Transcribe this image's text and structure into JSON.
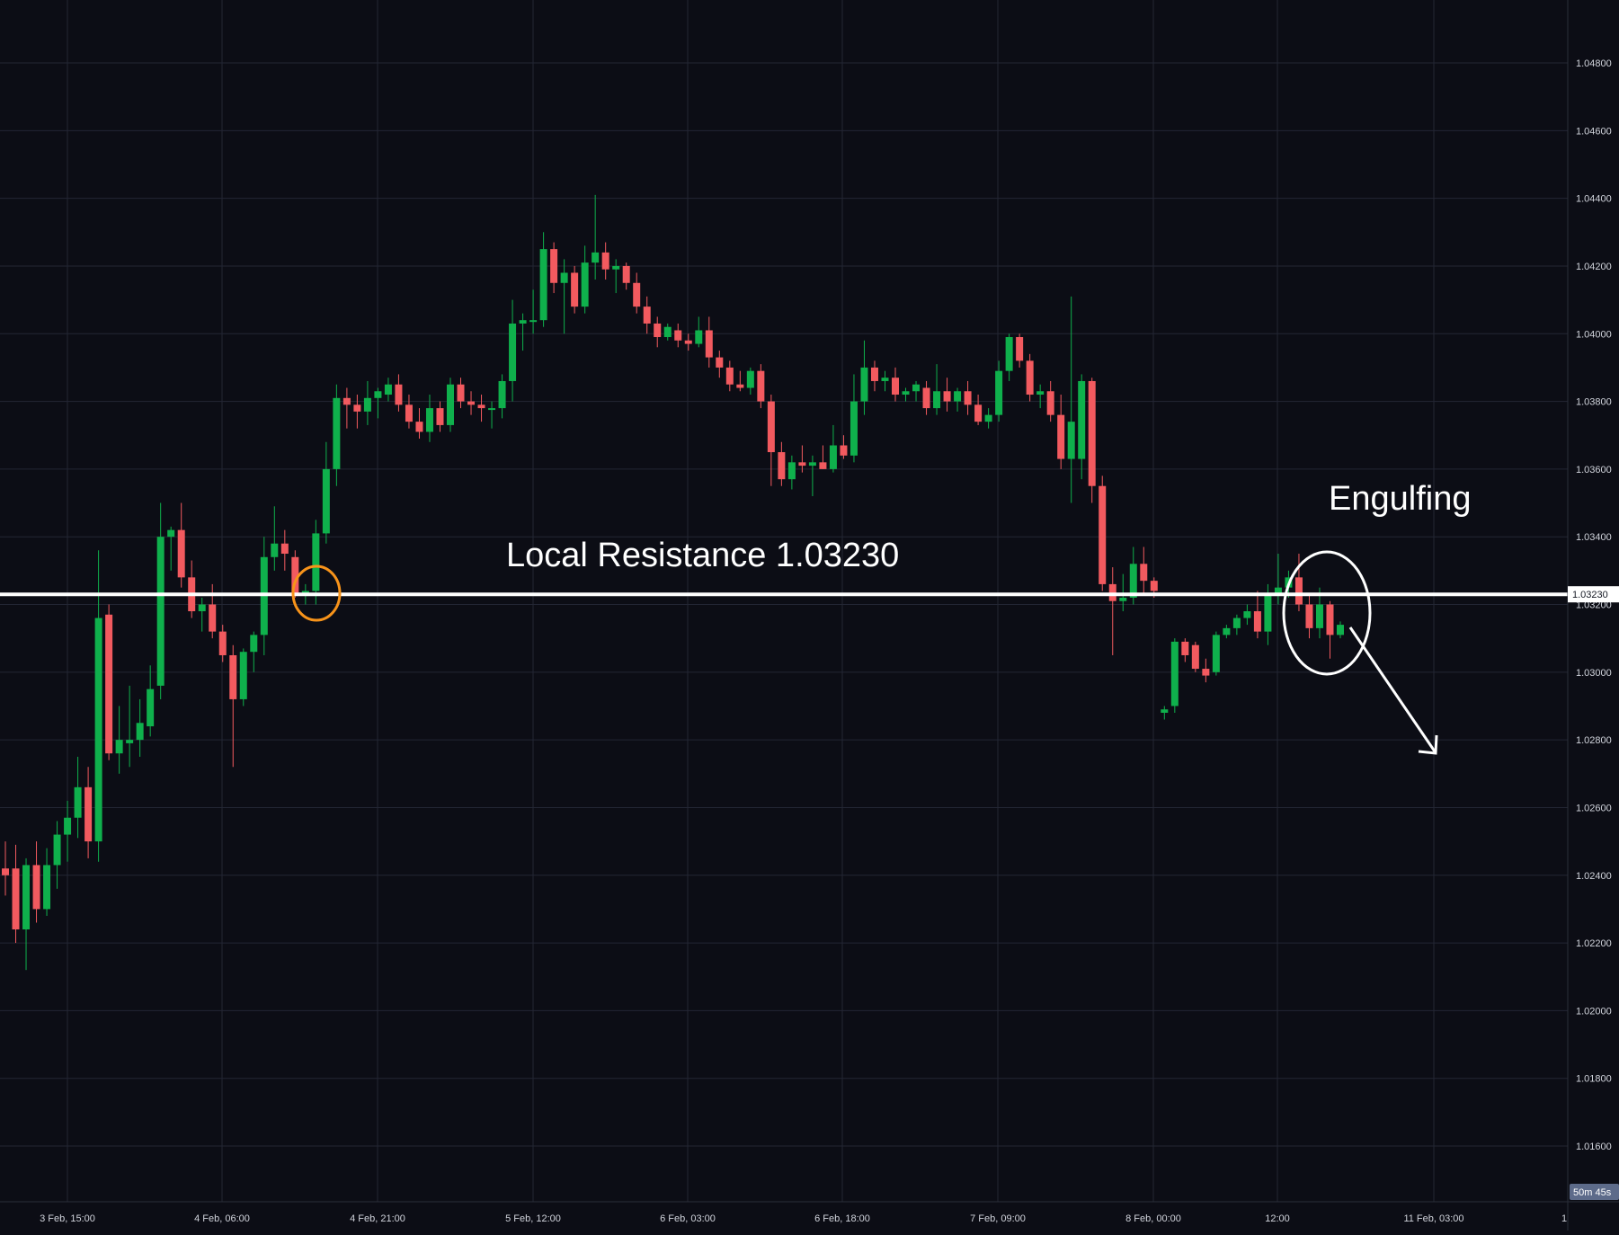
{
  "chart_data": {
    "type": "candlestick",
    "y_axis": {
      "ticks": [
        "1.04800",
        "1.04600",
        "1.04400",
        "1.04200",
        "1.04000",
        "1.03800",
        "1.03600",
        "1.03400",
        "1.03200",
        "1.03000",
        "1.02800",
        "1.02600",
        "1.02400",
        "1.02200",
        "1.02000",
        "1.01800",
        "1.01600"
      ],
      "range": [
        1.0146,
        1.0496
      ]
    },
    "x_axis": {
      "ticks": [
        "3 Feb, 15:00",
        "4 Feb, 06:00",
        "4 Feb, 21:00",
        "5 Feb, 12:00",
        "6 Feb, 03:00",
        "6 Feb, 18:00",
        "7 Feb, 09:00",
        "8 Feb, 00:00",
        "12:00",
        "11 Feb, 03:00",
        "1"
      ]
    },
    "current_price_label": "1.03230",
    "countdown_label": "50m 45s",
    "colors": {
      "bull": "#089981",
      "bull_fill": "#0fb04c",
      "bear": "#f23645",
      "bear_fill": "#f25a5f",
      "background": "#0c0d15",
      "grid": "#232634"
    },
    "resistance_level": 1.0323,
    "annotations": {
      "resistance_label": "Local Resistance 1.03230",
      "pattern_label": "Engulfing"
    },
    "candles": [
      {
        "o": 1.0242,
        "h": 1.025,
        "l": 1.0234,
        "c": 1.024
      },
      {
        "o": 1.0242,
        "h": 1.0249,
        "l": 1.022,
        "c": 1.0224
      },
      {
        "o": 1.0224,
        "h": 1.0245,
        "l": 1.0212,
        "c": 1.0243
      },
      {
        "o": 1.0243,
        "h": 1.025,
        "l": 1.0226,
        "c": 1.023
      },
      {
        "o": 1.023,
        "h": 1.0248,
        "l": 1.0228,
        "c": 1.0243
      },
      {
        "o": 1.0243,
        "h": 1.0256,
        "l": 1.0236,
        "c": 1.0252
      },
      {
        "o": 1.0252,
        "h": 1.0262,
        "l": 1.0244,
        "c": 1.0257
      },
      {
        "o": 1.0257,
        "h": 1.0275,
        "l": 1.0251,
        "c": 1.0266
      },
      {
        "o": 1.0266,
        "h": 1.0272,
        "l": 1.0245,
        "c": 1.025
      },
      {
        "o": 1.025,
        "h": 1.0336,
        "l": 1.0244,
        "c": 1.0316
      },
      {
        "o": 1.0317,
        "h": 1.032,
        "l": 1.0274,
        "c": 1.0276
      },
      {
        "o": 1.0276,
        "h": 1.029,
        "l": 1.027,
        "c": 1.028
      },
      {
        "o": 1.0279,
        "h": 1.0296,
        "l": 1.0272,
        "c": 1.028
      },
      {
        "o": 1.028,
        "h": 1.0292,
        "l": 1.0275,
        "c": 1.0285
      },
      {
        "o": 1.0284,
        "h": 1.0302,
        "l": 1.0281,
        "c": 1.0295
      },
      {
        "o": 1.0296,
        "h": 1.035,
        "l": 1.0292,
        "c": 1.034
      },
      {
        "o": 1.034,
        "h": 1.0343,
        "l": 1.033,
        "c": 1.0342
      },
      {
        "o": 1.0342,
        "h": 1.035,
        "l": 1.0325,
        "c": 1.0328
      },
      {
        "o": 1.0328,
        "h": 1.0333,
        "l": 1.0316,
        "c": 1.0318
      },
      {
        "o": 1.0318,
        "h": 1.0322,
        "l": 1.0312,
        "c": 1.032
      },
      {
        "o": 1.032,
        "h": 1.0326,
        "l": 1.031,
        "c": 1.0312
      },
      {
        "o": 1.0312,
        "h": 1.0314,
        "l": 1.0303,
        "c": 1.0305
      },
      {
        "o": 1.0305,
        "h": 1.0308,
        "l": 1.0272,
        "c": 1.0292
      },
      {
        "o": 1.0292,
        "h": 1.0307,
        "l": 1.029,
        "c": 1.0306
      },
      {
        "o": 1.0306,
        "h": 1.0312,
        "l": 1.03,
        "c": 1.0311
      },
      {
        "o": 1.0311,
        "h": 1.034,
        "l": 1.0305,
        "c": 1.0334
      },
      {
        "o": 1.0334,
        "h": 1.0349,
        "l": 1.033,
        "c": 1.0338
      },
      {
        "o": 1.0338,
        "h": 1.0342,
        "l": 1.033,
        "c": 1.0335
      },
      {
        "o": 1.0334,
        "h": 1.0336,
        "l": 1.0322,
        "c": 1.0323
      },
      {
        "o": 1.0323,
        "h": 1.0326,
        "l": 1.032,
        "c": 1.0324
      },
      {
        "o": 1.0324,
        "h": 1.0345,
        "l": 1.032,
        "c": 1.0341
      },
      {
        "o": 1.0341,
        "h": 1.0368,
        "l": 1.0338,
        "c": 1.036
      },
      {
        "o": 1.036,
        "h": 1.0385,
        "l": 1.0355,
        "c": 1.0381
      },
      {
        "o": 1.0381,
        "h": 1.0384,
        "l": 1.0372,
        "c": 1.0379
      },
      {
        "o": 1.0379,
        "h": 1.0382,
        "l": 1.0372,
        "c": 1.0377
      },
      {
        "o": 1.0377,
        "h": 1.0386,
        "l": 1.0373,
        "c": 1.0381
      },
      {
        "o": 1.0381,
        "h": 1.0384,
        "l": 1.0375,
        "c": 1.0383
      },
      {
        "o": 1.0382,
        "h": 1.0387,
        "l": 1.038,
        "c": 1.0385
      },
      {
        "o": 1.0385,
        "h": 1.0388,
        "l": 1.0377,
        "c": 1.0379
      },
      {
        "o": 1.0379,
        "h": 1.0382,
        "l": 1.0372,
        "c": 1.0374
      },
      {
        "o": 1.0374,
        "h": 1.0378,
        "l": 1.0369,
        "c": 1.0371
      },
      {
        "o": 1.0371,
        "h": 1.0382,
        "l": 1.0368,
        "c": 1.0378
      },
      {
        "o": 1.0378,
        "h": 1.038,
        "l": 1.0371,
        "c": 1.0373
      },
      {
        "o": 1.0373,
        "h": 1.0387,
        "l": 1.0371,
        "c": 1.0385
      },
      {
        "o": 1.0385,
        "h": 1.0387,
        "l": 1.0378,
        "c": 1.038
      },
      {
        "o": 1.038,
        "h": 1.0383,
        "l": 1.0376,
        "c": 1.0379
      },
      {
        "o": 1.0379,
        "h": 1.0382,
        "l": 1.0374,
        "c": 1.0378
      },
      {
        "o": 1.0378,
        "h": 1.038,
        "l": 1.0372,
        "c": 1.0378
      },
      {
        "o": 1.0378,
        "h": 1.0388,
        "l": 1.0375,
        "c": 1.0386
      },
      {
        "o": 1.0386,
        "h": 1.041,
        "l": 1.038,
        "c": 1.0403
      },
      {
        "o": 1.0403,
        "h": 1.0406,
        "l": 1.0395,
        "c": 1.0404
      },
      {
        "o": 1.0404,
        "h": 1.0413,
        "l": 1.04,
        "c": 1.0404
      },
      {
        "o": 1.0404,
        "h": 1.043,
        "l": 1.0402,
        "c": 1.0425
      },
      {
        "o": 1.0425,
        "h": 1.0427,
        "l": 1.0412,
        "c": 1.0415
      },
      {
        "o": 1.0415,
        "h": 1.0422,
        "l": 1.04,
        "c": 1.0418
      },
      {
        "o": 1.0418,
        "h": 1.042,
        "l": 1.0406,
        "c": 1.0408
      },
      {
        "o": 1.0408,
        "h": 1.0426,
        "l": 1.0406,
        "c": 1.0421
      },
      {
        "o": 1.0421,
        "h": 1.0441,
        "l": 1.0416,
        "c": 1.0424
      },
      {
        "o": 1.0424,
        "h": 1.0427,
        "l": 1.0416,
        "c": 1.0419
      },
      {
        "o": 1.0419,
        "h": 1.0422,
        "l": 1.0412,
        "c": 1.042
      },
      {
        "o": 1.042,
        "h": 1.0421,
        "l": 1.0413,
        "c": 1.0415
      },
      {
        "o": 1.0415,
        "h": 1.0418,
        "l": 1.0406,
        "c": 1.0408
      },
      {
        "o": 1.0408,
        "h": 1.0411,
        "l": 1.04,
        "c": 1.0403
      },
      {
        "o": 1.0403,
        "h": 1.0405,
        "l": 1.0396,
        "c": 1.0399
      },
      {
        "o": 1.0399,
        "h": 1.0403,
        "l": 1.0398,
        "c": 1.0402
      },
      {
        "o": 1.0401,
        "h": 1.0403,
        "l": 1.0396,
        "c": 1.0398
      },
      {
        "o": 1.0398,
        "h": 1.04,
        "l": 1.0395,
        "c": 1.0397
      },
      {
        "o": 1.0397,
        "h": 1.0405,
        "l": 1.0396,
        "c": 1.0401
      },
      {
        "o": 1.0401,
        "h": 1.0405,
        "l": 1.039,
        "c": 1.0393
      },
      {
        "o": 1.0393,
        "h": 1.0395,
        "l": 1.0387,
        "c": 1.039
      },
      {
        "o": 1.039,
        "h": 1.0392,
        "l": 1.0383,
        "c": 1.0385
      },
      {
        "o": 1.0385,
        "h": 1.0389,
        "l": 1.0383,
        "c": 1.0384
      },
      {
        "o": 1.0384,
        "h": 1.039,
        "l": 1.0382,
        "c": 1.0389
      },
      {
        "o": 1.0389,
        "h": 1.0391,
        "l": 1.0378,
        "c": 1.038
      },
      {
        "o": 1.038,
        "h": 1.0382,
        "l": 1.0355,
        "c": 1.0365
      },
      {
        "o": 1.0365,
        "h": 1.0368,
        "l": 1.0355,
        "c": 1.0357
      },
      {
        "o": 1.0357,
        "h": 1.0364,
        "l": 1.0354,
        "c": 1.0362
      },
      {
        "o": 1.0362,
        "h": 1.0367,
        "l": 1.0359,
        "c": 1.0361
      },
      {
        "o": 1.0361,
        "h": 1.0364,
        "l": 1.0352,
        "c": 1.0362
      },
      {
        "o": 1.0362,
        "h": 1.0367,
        "l": 1.036,
        "c": 1.036
      },
      {
        "o": 1.036,
        "h": 1.0373,
        "l": 1.0359,
        "c": 1.0367
      },
      {
        "o": 1.0367,
        "h": 1.037,
        "l": 1.0363,
        "c": 1.0364
      },
      {
        "o": 1.0364,
        "h": 1.0388,
        "l": 1.0362,
        "c": 1.038
      },
      {
        "o": 1.038,
        "h": 1.0398,
        "l": 1.0376,
        "c": 1.039
      },
      {
        "o": 1.039,
        "h": 1.0392,
        "l": 1.0383,
        "c": 1.0386
      },
      {
        "o": 1.0386,
        "h": 1.0389,
        "l": 1.0383,
        "c": 1.0387
      },
      {
        "o": 1.0387,
        "h": 1.039,
        "l": 1.038,
        "c": 1.0382
      },
      {
        "o": 1.0382,
        "h": 1.0384,
        "l": 1.038,
        "c": 1.0383
      },
      {
        "o": 1.0383,
        "h": 1.0386,
        "l": 1.038,
        "c": 1.0385
      },
      {
        "o": 1.0384,
        "h": 1.0386,
        "l": 1.0376,
        "c": 1.0378
      },
      {
        "o": 1.0378,
        "h": 1.0391,
        "l": 1.0376,
        "c": 1.0383
      },
      {
        "o": 1.0383,
        "h": 1.0387,
        "l": 1.0377,
        "c": 1.038
      },
      {
        "o": 1.038,
        "h": 1.0384,
        "l": 1.0377,
        "c": 1.0383
      },
      {
        "o": 1.0383,
        "h": 1.0386,
        "l": 1.0376,
        "c": 1.0379
      },
      {
        "o": 1.0379,
        "h": 1.0382,
        "l": 1.0373,
        "c": 1.0374
      },
      {
        "o": 1.0374,
        "h": 1.0378,
        "l": 1.0372,
        "c": 1.0376
      },
      {
        "o": 1.0376,
        "h": 1.0392,
        "l": 1.0374,
        "c": 1.0389
      },
      {
        "o": 1.0389,
        "h": 1.04,
        "l": 1.0386,
        "c": 1.0399
      },
      {
        "o": 1.0399,
        "h": 1.04,
        "l": 1.039,
        "c": 1.0392
      },
      {
        "o": 1.0392,
        "h": 1.0394,
        "l": 1.038,
        "c": 1.0382
      },
      {
        "o": 1.0382,
        "h": 1.0385,
        "l": 1.0378,
        "c": 1.0383
      },
      {
        "o": 1.0383,
        "h": 1.0386,
        "l": 1.0374,
        "c": 1.0376
      },
      {
        "o": 1.0376,
        "h": 1.0382,
        "l": 1.036,
        "c": 1.0363
      },
      {
        "o": 1.0363,
        "h": 1.0411,
        "l": 1.035,
        "c": 1.0374
      },
      {
        "o": 1.0363,
        "h": 1.0388,
        "l": 1.0357,
        "c": 1.0386
      },
      {
        "o": 1.0386,
        "h": 1.0387,
        "l": 1.035,
        "c": 1.0355
      },
      {
        "o": 1.0355,
        "h": 1.0358,
        "l": 1.0324,
        "c": 1.0326
      },
      {
        "o": 1.0326,
        "h": 1.0331,
        "l": 1.0305,
        "c": 1.0321
      },
      {
        "o": 1.0321,
        "h": 1.0329,
        "l": 1.0318,
        "c": 1.0322
      },
      {
        "o": 1.0322,
        "h": 1.0337,
        "l": 1.032,
        "c": 1.0332
      },
      {
        "o": 1.0332,
        "h": 1.0337,
        "l": 1.0323,
        "c": 1.0327
      },
      {
        "o": 1.0327,
        "h": 1.0328,
        "l": 1.0322,
        "c": 1.0324
      },
      {
        "o": 1.0288,
        "h": 1.029,
        "l": 1.0286,
        "c": 1.0289
      },
      {
        "o": 1.029,
        "h": 1.031,
        "l": 1.0288,
        "c": 1.0309
      },
      {
        "o": 1.0309,
        "h": 1.031,
        "l": 1.0303,
        "c": 1.0305
      },
      {
        "o": 1.0308,
        "h": 1.0309,
        "l": 1.03,
        "c": 1.0301
      },
      {
        "o": 1.0301,
        "h": 1.0304,
        "l": 1.0297,
        "c": 1.0299
      },
      {
        "o": 1.03,
        "h": 1.0312,
        "l": 1.0299,
        "c": 1.0311
      },
      {
        "o": 1.0311,
        "h": 1.0314,
        "l": 1.031,
        "c": 1.0313
      },
      {
        "o": 1.0313,
        "h": 1.0317,
        "l": 1.0311,
        "c": 1.0316
      },
      {
        "o": 1.0316,
        "h": 1.032,
        "l": 1.0314,
        "c": 1.0318
      },
      {
        "o": 1.0318,
        "h": 1.0324,
        "l": 1.031,
        "c": 1.0312
      },
      {
        "o": 1.0312,
        "h": 1.0326,
        "l": 1.0308,
        "c": 1.0323
      },
      {
        "o": 1.0323,
        "h": 1.0335,
        "l": 1.032,
        "c": 1.0325
      },
      {
        "o": 1.0325,
        "h": 1.033,
        "l": 1.0322,
        "c": 1.0328
      },
      {
        "o": 1.0328,
        "h": 1.0335,
        "l": 1.0318,
        "c": 1.032
      },
      {
        "o": 1.032,
        "h": 1.0323,
        "l": 1.031,
        "c": 1.0313
      },
      {
        "o": 1.0313,
        "h": 1.0325,
        "l": 1.031,
        "c": 1.032
      },
      {
        "o": 1.032,
        "h": 1.0321,
        "l": 1.0304,
        "c": 1.0311
      },
      {
        "o": 1.0311,
        "h": 1.0315,
        "l": 1.031,
        "c": 1.0314
      }
    ]
  }
}
